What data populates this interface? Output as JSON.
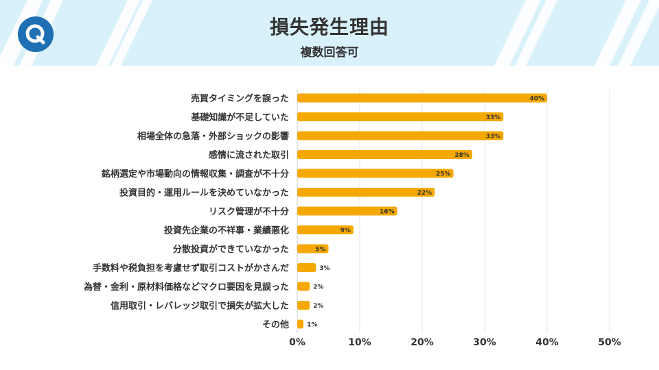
{
  "header": {
    "title": "損失発生理由",
    "subtitle": "複数回答可",
    "logo_letter": "Q"
  },
  "colors": {
    "header_bg": "#d9f1fb",
    "stripe": "#ffffff",
    "logo": "#1e6fb3",
    "bar": "#f5a800",
    "grid": "#e6e6e6",
    "text": "#333333"
  },
  "chart_data": {
    "type": "bar",
    "orientation": "horizontal",
    "categories": [
      "売買タイミングを誤った",
      "基礎知識が不足していた",
      "相場全体の急落・外部ショックの影響",
      "感情に流された取引",
      "銘柄選定や市場動向の情報収集・調査が不十分",
      "投資目的・運用ルールを決めていなかった",
      "リスク管理が不十分",
      "投資先企業の不祥事・業績悪化",
      "分散投資ができていなかった",
      "手数料や税負担を考慮せず取引コストがかさんだ",
      "為替・金利・原材料価格などマクロ要因を見誤った",
      "信用取引・レバレッジ取引で損失が拡大した",
      "その他"
    ],
    "values": [
      40,
      33,
      33,
      28,
      25,
      22,
      16,
      9,
      5,
      3,
      2,
      2,
      1
    ],
    "value_labels": [
      "40%",
      "33%",
      "33%",
      "28%",
      "25%",
      "22%",
      "16%",
      "9%",
      "5%",
      "3%",
      "2%",
      "2%",
      "1%"
    ],
    "xlim": [
      0,
      50
    ],
    "ticks": [
      0,
      10,
      20,
      30,
      40,
      50
    ],
    "tick_labels": [
      "0%",
      "10%",
      "20%",
      "30%",
      "40%",
      "50%"
    ],
    "grid": true
  }
}
